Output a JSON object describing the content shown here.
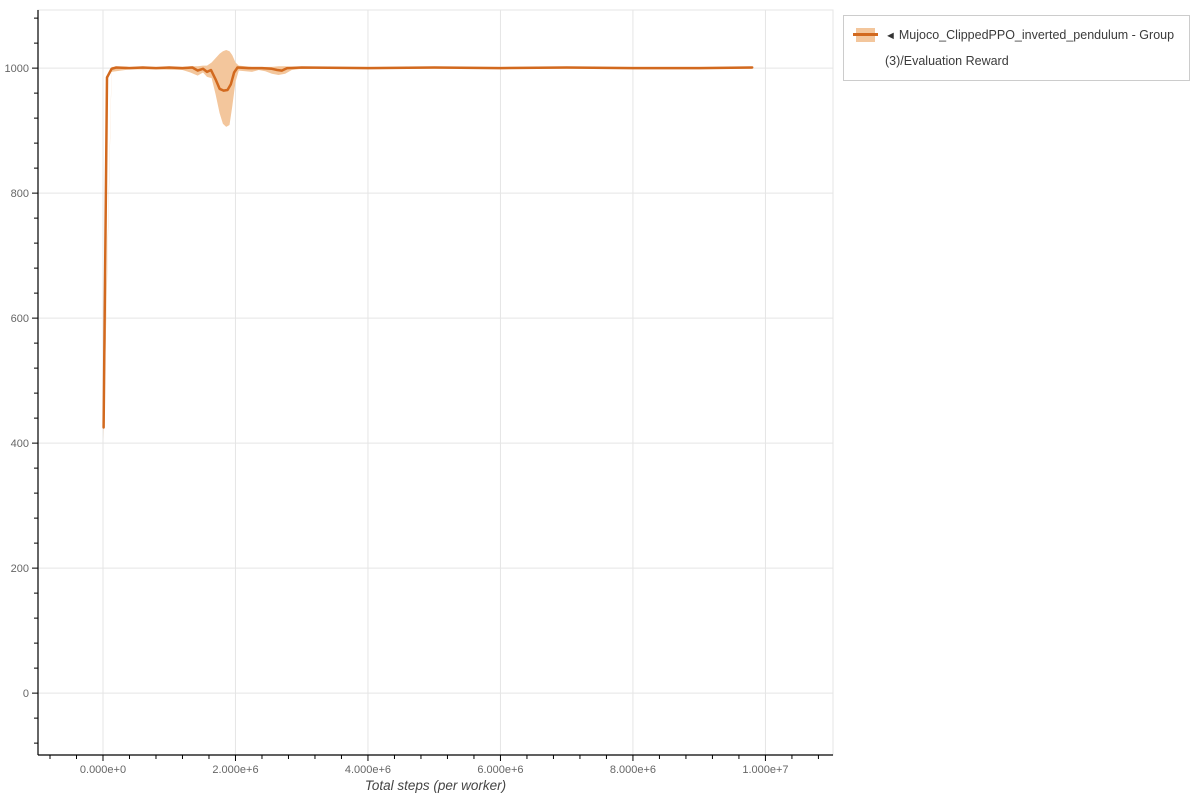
{
  "page": {
    "background": "#ffffff"
  },
  "legend": {
    "collapse_icon": "◄",
    "label": "Mujoco_ClippedPPO_inverted_pendulum - Group(3)/Evaluation Reward",
    "swatch_fill": "#F3C69C",
    "swatch_line_color": "#D2691E"
  },
  "chart_data": {
    "type": "line",
    "title": "",
    "xlabel": "Total steps (per worker)",
    "ylabel": "",
    "grid": true,
    "legend_position": "top-right",
    "x_range": [
      -981000,
      11020000
    ],
    "y_range": [
      -99,
      1093
    ],
    "x_minor_step": 400000,
    "y_minor_step": 40,
    "x_major_ticks": [
      {
        "value": 0,
        "label": "0.000e+0"
      },
      {
        "value": 2000000,
        "label": "2.000e+6"
      },
      {
        "value": 4000000,
        "label": "4.000e+6"
      },
      {
        "value": 6000000,
        "label": "6.000e+6"
      },
      {
        "value": 8000000,
        "label": "8.000e+6"
      },
      {
        "value": 10000000,
        "label": "1.000e+7"
      }
    ],
    "y_major_ticks": [
      {
        "value": 0,
        "label": "0"
      },
      {
        "value": 200,
        "label": "200"
      },
      {
        "value": 400,
        "label": "400"
      },
      {
        "value": 600,
        "label": "600"
      },
      {
        "value": 800,
        "label": "800"
      },
      {
        "value": 1000,
        "label": "1000"
      }
    ],
    "series": [
      {
        "name": "Mujoco_ClippedPPO_inverted_pendulum - Group(3)/Evaluation Reward",
        "color": "#D2691E",
        "band_color": "#F3C69C",
        "line_width": 2.5,
        "line": [
          [
            10000,
            425
          ],
          [
            60000,
            985
          ],
          [
            130000,
            999
          ],
          [
            200000,
            1001
          ],
          [
            400000,
            1000
          ],
          [
            600000,
            1001
          ],
          [
            800000,
            1000
          ],
          [
            1000000,
            1001
          ],
          [
            1200000,
            1000
          ],
          [
            1350000,
            1001
          ],
          [
            1430000,
            996
          ],
          [
            1510000,
            999
          ],
          [
            1570000,
            994
          ],
          [
            1630000,
            997
          ],
          [
            1700000,
            982
          ],
          [
            1760000,
            967
          ],
          [
            1820000,
            964
          ],
          [
            1880000,
            965
          ],
          [
            1930000,
            974
          ],
          [
            1980000,
            993
          ],
          [
            2030000,
            1001
          ],
          [
            2200000,
            1000
          ],
          [
            2400000,
            1000
          ],
          [
            2550000,
            999
          ],
          [
            2630000,
            997
          ],
          [
            2700000,
            996
          ],
          [
            2780000,
            1000
          ],
          [
            3000000,
            1001
          ],
          [
            4000000,
            1000
          ],
          [
            5000000,
            1001
          ],
          [
            6000000,
            1000
          ],
          [
            7000000,
            1001
          ],
          [
            8000000,
            1000
          ],
          [
            9000000,
            1000
          ],
          [
            9800000,
            1001
          ]
        ],
        "band": [
          [
            10000,
            404,
            432
          ],
          [
            130000,
            994,
            1002
          ],
          [
            400000,
            998,
            1002
          ],
          [
            800000,
            998,
            1002
          ],
          [
            1200000,
            997,
            1002
          ],
          [
            1320000,
            993,
            1003
          ],
          [
            1430000,
            988,
            1003
          ],
          [
            1510000,
            993,
            1004
          ],
          [
            1570000,
            986,
            1004
          ],
          [
            1640000,
            984,
            1009
          ],
          [
            1700000,
            958,
            1016
          ],
          [
            1760000,
            928,
            1023
          ],
          [
            1810000,
            911,
            1027
          ],
          [
            1860000,
            906,
            1029
          ],
          [
            1910000,
            909,
            1027
          ],
          [
            1950000,
            938,
            1021
          ],
          [
            2000000,
            978,
            1009
          ],
          [
            2050000,
            996,
            1004
          ],
          [
            2150000,
            995,
            1003
          ],
          [
            2250000,
            994,
            1002
          ],
          [
            2350000,
            997,
            1002
          ],
          [
            2450000,
            995,
            1002
          ],
          [
            2550000,
            991,
            1002
          ],
          [
            2650000,
            989,
            1003
          ],
          [
            2750000,
            991,
            1003
          ],
          [
            2850000,
            997,
            1002
          ],
          [
            3000000,
            999,
            1002
          ],
          [
            5000000,
            999,
            1002
          ],
          [
            7000000,
            999,
            1002
          ],
          [
            9800000,
            999,
            1002
          ]
        ]
      }
    ],
    "style": {
      "grid_color": "#e5e5e5",
      "outline_color": "#e5e5e5",
      "axis_color": "#000000",
      "tick_label_color": "#666666",
      "tick_label_size": 11
    }
  }
}
